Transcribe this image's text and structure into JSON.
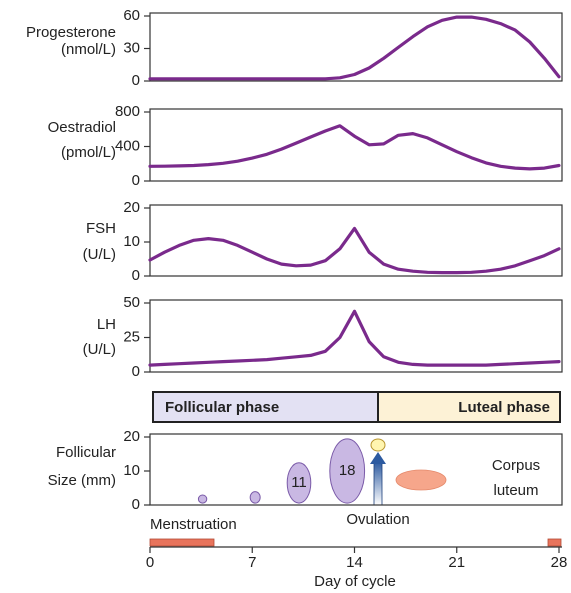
{
  "chart_data": [
    {
      "type": "line",
      "ylabel": [
        "Progesterone",
        "(nmol/L)"
      ],
      "color": "#7a2a8c",
      "xlim": [
        0,
        28
      ],
      "ylim": [
        0,
        60
      ],
      "yticks": [
        0,
        30,
        60
      ],
      "x": [
        0,
        1,
        2,
        3,
        4,
        5,
        6,
        7,
        8,
        9,
        10,
        11,
        12,
        13,
        14,
        15,
        16,
        17,
        18,
        19,
        20,
        21,
        22,
        23,
        24,
        25,
        26,
        27,
        28
      ],
      "values": [
        2,
        2,
        2,
        2,
        2,
        2,
        2,
        2,
        2,
        2,
        2,
        2,
        2,
        3,
        6,
        12,
        21,
        31,
        41,
        50,
        56,
        59,
        59,
        57,
        53,
        47,
        36,
        21,
        4
      ]
    },
    {
      "type": "line",
      "ylabel": [
        "Oestradiol",
        "(pmol/L)"
      ],
      "color": "#7a2a8c",
      "xlim": [
        0,
        28
      ],
      "ylim": [
        0,
        800
      ],
      "yticks": [
        0,
        400,
        800
      ],
      "x": [
        0,
        1,
        2,
        3,
        4,
        5,
        6,
        7,
        8,
        9,
        10,
        11,
        12,
        13,
        14,
        15,
        16,
        17,
        18,
        19,
        20,
        21,
        22,
        23,
        24,
        25,
        26,
        27,
        28
      ],
      "values": [
        170,
        172,
        175,
        180,
        190,
        205,
        230,
        265,
        310,
        370,
        440,
        510,
        580,
        640,
        520,
        420,
        430,
        530,
        550,
        500,
        420,
        340,
        270,
        210,
        170,
        150,
        140,
        150,
        180
      ]
    },
    {
      "type": "line",
      "ylabel": [
        "FSH",
        "(U/L)"
      ],
      "color": "#7a2a8c",
      "xlim": [
        0,
        28
      ],
      "ylim": [
        0,
        20
      ],
      "yticks": [
        0,
        10,
        20
      ],
      "x": [
        0,
        1,
        2,
        3,
        4,
        5,
        6,
        7,
        8,
        9,
        10,
        11,
        12,
        13,
        14,
        15,
        16,
        17,
        18,
        19,
        20,
        21,
        22,
        23,
        24,
        25,
        26,
        27,
        28
      ],
      "values": [
        4.7,
        7,
        9,
        10.5,
        11,
        10.5,
        9,
        7,
        5,
        3.5,
        3,
        3.2,
        4.5,
        8,
        14,
        7,
        3.5,
        2,
        1.4,
        1.1,
        1,
        1,
        1.1,
        1.4,
        2,
        3,
        4.5,
        6,
        8
      ]
    },
    {
      "type": "line",
      "ylabel": [
        "LH",
        "(U/L)"
      ],
      "color": "#7a2a8c",
      "xlim": [
        0,
        28
      ],
      "ylim": [
        0,
        50
      ],
      "yticks": [
        0,
        25,
        50
      ],
      "x": [
        0,
        1,
        2,
        3,
        4,
        5,
        6,
        7,
        8,
        9,
        10,
        11,
        12,
        13,
        14,
        15,
        16,
        17,
        18,
        19,
        20,
        21,
        22,
        23,
        24,
        25,
        26,
        27,
        28
      ],
      "values": [
        5,
        5.5,
        6,
        6.5,
        7,
        7.5,
        8,
        8.5,
        9,
        10,
        11,
        12,
        15,
        25,
        44,
        22,
        11,
        7,
        5.5,
        5,
        5,
        5,
        5,
        5,
        5.5,
        6,
        6.5,
        7,
        7.5
      ]
    },
    {
      "type": "bubble",
      "ylabel": [
        "Follicular",
        "Size (mm)"
      ],
      "color": "#c9b8e3",
      "xlim": [
        0,
        28
      ],
      "xticks": [
        0,
        7,
        14,
        21,
        28
      ],
      "xlabel": "Day of cycle",
      "ylim": [
        0,
        20
      ],
      "yticks": [
        0,
        10,
        20
      ],
      "x": [
        3.6,
        7.2,
        10.2,
        13.5
      ],
      "values": [
        1.5,
        2.5,
        11,
        18
      ],
      "labeled": [
        false,
        false,
        true,
        true
      ]
    }
  ],
  "phases": [
    "Follicular phase",
    "Luteal phase"
  ],
  "annotations": {
    "ovulation": "Ovulation",
    "corpus_luteum": [
      "Corpus",
      "luteum"
    ],
    "menstruation": "Menstruation"
  }
}
